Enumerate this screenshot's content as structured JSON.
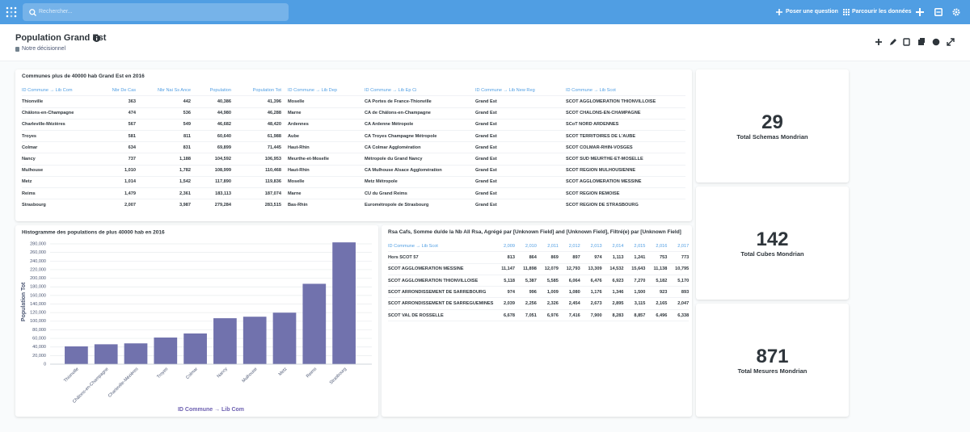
{
  "topbar": {
    "search_placeholder": "Rechercher...",
    "actions": [
      "Poser une question",
      "Parcourir les données"
    ]
  },
  "header": {
    "title": "Population Grand Est",
    "collection": "Notre décisionnel"
  },
  "table": {
    "title": "Communes plus de 40000 hab Grand Est en 2016",
    "columns": [
      "ID Commune → Lib Com",
      "Nbr De Cas",
      "Nbr Nai Ss Ance",
      "Population",
      "Population Tot",
      "ID Commune → Lib Dep",
      "ID Commune → Lib Ep Ci",
      "ID Commune → Lib New Reg",
      "ID Commune → Lib Scot"
    ],
    "rows": [
      [
        "Thionville",
        "363",
        "442",
        "40,386",
        "41,396",
        "Moselle",
        "CA Portes de France-Thionville",
        "Grand Est",
        "SCOT AGGLOMERATION THIONVILLOISE"
      ],
      [
        "Châlons-en-Champagne",
        "474",
        "536",
        "44,980",
        "46,288",
        "Marne",
        "CA de Châlons-en-Champagne",
        "Grand Est",
        "SCOT CHALONS-EN-CHAMPAGNE"
      ],
      [
        "Charleville-Mézières",
        "567",
        "549",
        "46,682",
        "48,420",
        "Ardennes",
        "CA Ardenne Métropole",
        "Grand Est",
        "SCoT NORD ARDENNES"
      ],
      [
        "Troyes",
        "581",
        "811",
        "60,640",
        "61,988",
        "Aube",
        "CA Troyes Champagne Métropole",
        "Grand Est",
        "SCOT TERRITOIRES DE L'AUBE"
      ],
      [
        "Colmar",
        "634",
        "831",
        "69,899",
        "71,445",
        "Haut-Rhin",
        "CA Colmar Agglomération",
        "Grand Est",
        "SCOT COLMAR-RHIN-VOSGES"
      ],
      [
        "Nancy",
        "737",
        "1,188",
        "104,592",
        "106,953",
        "Meurthe-et-Moselle",
        "Métropole du Grand Nancy",
        "Grand Est",
        "SCOT SUD MEURTHE-ET-MOSELLE"
      ],
      [
        "Mulhouse",
        "1,010",
        "1,782",
        "108,999",
        "110,468",
        "Haut-Rhin",
        "CA Mulhouse Alsace Agglomération",
        "Grand Est",
        "SCOT REGION MULHOUSIENNE"
      ],
      [
        "Metz",
        "1,014",
        "1,542",
        "117,890",
        "119,836",
        "Moselle",
        "Metz Métropole",
        "Grand Est",
        "SCOT AGGLOMERATION MESSINE"
      ],
      [
        "Reims",
        "1,479",
        "2,361",
        "183,113",
        "187,074",
        "Marne",
        "CU du Grand Reims",
        "Grand Est",
        "SCOT REGION REMOISE"
      ],
      [
        "Strasbourg",
        "2,007",
        "3,987",
        "279,284",
        "283,515",
        "Bas-Rhin",
        "Eurométropole de Strasbourg",
        "Grand Est",
        "SCOT REGION DE STRASBOURG"
      ]
    ]
  },
  "chart_data": {
    "type": "bar",
    "title": "Histogramme des populations de plus 40000 hab en 2016",
    "x_label": "ID Commune → Lib Com",
    "y_label": "Population Tot",
    "categories": [
      "Thionville",
      "Châlons-en-Champagne",
      "Charleville-Mézières",
      "Troyes",
      "Colmar",
      "Nancy",
      "Mulhouse",
      "Metz",
      "Reims",
      "Strasbourg"
    ],
    "values": [
      41396,
      46288,
      48420,
      61988,
      71445,
      106953,
      110468,
      119836,
      187074,
      283515
    ],
    "color": "#7172ad",
    "ylim": [
      0,
      290000
    ],
    "yticks": [
      0,
      {
        "value": 20000,
        "label": "20,000"
      },
      {
        "value": 40000,
        "label": "40,000"
      },
      {
        "value": 60000,
        "label": "60,000"
      },
      {
        "value": 80000,
        "label": "80,000"
      },
      {
        "value": 100000,
        "label": "100,000"
      },
      {
        "value": 120000,
        "label": "120,000"
      },
      {
        "value": 140000,
        "label": "140,000"
      },
      {
        "value": 160000,
        "label": "160,000"
      },
      {
        "value": 180000,
        "label": "180,000"
      },
      {
        "value": 200000,
        "label": "200,000"
      },
      {
        "value": 220000,
        "label": "220,000"
      },
      {
        "value": 240000,
        "label": "240,000"
      },
      {
        "value": 260000,
        "label": "260,000"
      },
      {
        "value": 280000,
        "label": "280,000"
      }
    ],
    "grid": true
  },
  "pivot": {
    "title": "Rsa Cafs, Somme du/de la Nb All Rsa, Agrégé par [Unknown Field] and [Unknown Field], Filtré(e) par [Unknown Field]",
    "columns": [
      "ID Commune → Lib Scot",
      "2,009",
      "2,010",
      "2,011",
      "2,012",
      "2,013",
      "2,014",
      "2,015",
      "2,016",
      "2,017"
    ],
    "rows": [
      [
        "Hors SCOT 57",
        "813",
        "864",
        "869",
        "897",
        "974",
        "1,113",
        "1,241",
        "753",
        "773"
      ],
      [
        "SCOT AGGLOMERATION MESSINE",
        "11,147",
        "11,898",
        "12,079",
        "12,793",
        "13,309",
        "14,532",
        "15,643",
        "11,138",
        "10,795"
      ],
      [
        "SCOT AGGLOMERATION THIONVILLOISE",
        "5,118",
        "5,387",
        "5,585",
        "6,064",
        "6,476",
        "6,923",
        "7,270",
        "5,182",
        "5,170"
      ],
      [
        "SCOT ARRONDISSEMENT DE SARREBOURG",
        "974",
        "996",
        "1,009",
        "1,080",
        "1,176",
        "1,346",
        "1,500",
        "923",
        "893"
      ],
      [
        "SCOT ARRONDISSEMENT DE SARREGUEMINES",
        "2,039",
        "2,256",
        "2,326",
        "2,454",
        "2,673",
        "2,895",
        "3,115",
        "2,165",
        "2,047"
      ],
      [
        "SCOT VAL DE ROSSELLE",
        "6,678",
        "7,051",
        "6,976",
        "7,416",
        "7,900",
        "8,283",
        "8,857",
        "6,496",
        "6,338"
      ]
    ]
  },
  "scalars": [
    {
      "value": 29,
      "label": "Total Schemas Mondrian"
    },
    {
      "value": 142,
      "label": "Total Cubes Mondrian"
    },
    {
      "value": 871,
      "label": "Total Mesures Mondrian"
    }
  ]
}
